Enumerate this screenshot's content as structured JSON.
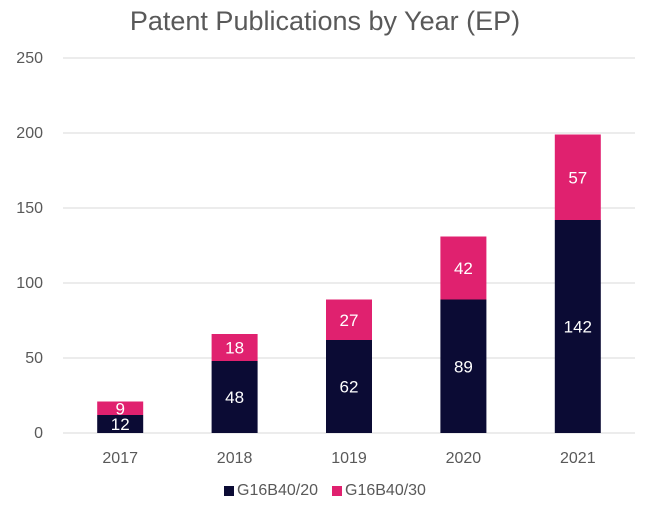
{
  "chart_data": {
    "type": "bar",
    "stacked": true,
    "title": "Patent Publications by Year (EP)",
    "categories": [
      "2017",
      "2018",
      "1019",
      "2020",
      "2021"
    ],
    "series": [
      {
        "name": "G16B40/20",
        "color": "#0b0b34",
        "values": [
          12,
          48,
          62,
          89,
          142
        ]
      },
      {
        "name": "G16B40/30",
        "color": "#e0216f",
        "values": [
          9,
          18,
          27,
          42,
          57
        ]
      }
    ],
    "ylim": [
      0,
      250
    ],
    "yticks": [
      0,
      50,
      100,
      150,
      200,
      250
    ],
    "xlabel": "",
    "ylabel": "",
    "grid": true,
    "legend_position": "bottom"
  }
}
